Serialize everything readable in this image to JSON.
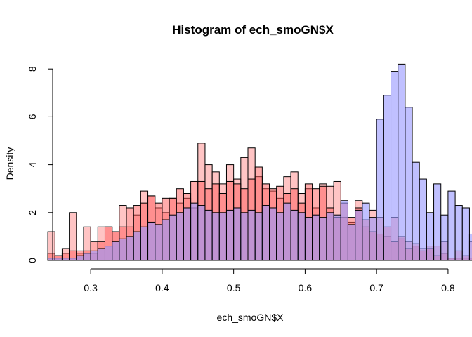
{
  "chart_data": {
    "type": "bar",
    "title": "Histogram of ech_smoGN$X",
    "xlabel": "ech_smoGN$X",
    "ylabel": "Density",
    "xlim": [
      0.235,
      0.805
    ],
    "ylim": [
      0,
      8.5
    ],
    "x_ticks": [
      0.3,
      0.4,
      0.5,
      0.6,
      0.7,
      0.8
    ],
    "x_tick_labels": [
      "0.3",
      "0.4",
      "0.5",
      "0.6",
      "0.7",
      "0.8"
    ],
    "y_ticks": [
      0,
      2,
      4,
      6,
      8
    ],
    "y_tick_labels": [
      "0",
      "2",
      "4",
      "6",
      "8"
    ],
    "bin_start": 0.24,
    "bin_width": 0.01,
    "series": [
      {
        "color": "rgba(255,138,138,0.5)",
        "values": [
          1.2,
          0.2,
          0.5,
          2.0,
          0.3,
          1.4,
          0.3,
          1.4,
          1.4,
          1.2,
          2.3,
          1.4,
          1.9,
          2.9,
          2.7,
          2.2,
          2.0,
          2.6,
          2.4,
          2.6,
          2.2,
          4.9,
          4.0,
          3.7,
          3.2,
          4.0,
          3.4,
          4.3,
          4.7,
          3.5,
          3.0,
          2.9,
          2.6,
          3.5,
          3.7,
          2.8,
          3.0,
          2.2,
          3.2,
          3.1,
          3.3,
          1.8,
          1.6,
          2.5,
          1.4,
          2.1,
          1.8,
          1.0,
          1.8,
          0.9,
          0.8,
          0.7,
          0.5,
          0.6,
          0.6,
          0.8,
          0.1,
          0.4,
          0.1,
          0.8,
          0.6,
          0.1,
          0.2,
          0.3,
          0.6,
          0.5,
          0.8,
          0.6,
          0.0,
          0.8,
          0.8,
          0.8
        ]
      },
      {
        "color": "rgba(255,90,90,0.5)",
        "values": [
          0.3,
          0.2,
          0.3,
          0.4,
          0.4,
          0.4,
          0.8,
          0.8,
          1.4,
          1.2,
          1.4,
          2.2,
          2.3,
          2.4,
          2.7,
          2.4,
          2.6,
          2.6,
          3.0,
          2.8,
          3.3,
          3.3,
          3.0,
          3.2,
          2.8,
          3.3,
          3.2,
          3.0,
          3.4,
          3.9,
          3.2,
          3.0,
          3.1,
          2.8,
          3.0,
          2.4,
          3.2,
          3.0,
          3.1,
          2.2,
          1.8,
          2.4,
          1.8,
          2.2,
          1.7,
          1.2,
          1.1,
          1.4,
          0.8,
          1.0,
          0.5,
          0.6,
          0.4,
          0.5,
          0.2,
          0.3,
          0.1,
          0.1,
          0.2,
          0.1,
          0.0,
          0.0,
          0.0,
          0.1,
          0.0,
          0.0,
          0.0,
          0.0,
          0.0,
          0.0,
          0.0,
          0.0
        ]
      },
      {
        "color": "rgba(150,150,255,0.6)",
        "values": [
          0.1,
          0.1,
          0.1,
          0.1,
          0.2,
          0.3,
          0.4,
          0.5,
          0.6,
          0.8,
          0.9,
          1.0,
          1.2,
          1.4,
          1.6,
          1.5,
          1.7,
          1.9,
          2.0,
          2.2,
          2.4,
          2.3,
          2.1,
          2.0,
          2.0,
          2.1,
          2.2,
          2.0,
          2.1,
          2.0,
          2.3,
          2.2,
          2.0,
          2.4,
          2.1,
          2.0,
          1.8,
          1.9,
          1.8,
          2.0,
          1.9,
          2.5,
          1.5,
          2.1,
          2.4,
          1.8,
          5.9,
          6.9,
          7.9,
          8.2,
          6.4,
          4.1,
          3.4,
          2.0,
          3.2,
          1.9,
          2.9,
          2.3,
          2.2,
          1.1,
          0.8,
          0.7,
          0.6,
          0.4,
          0.6,
          0.4,
          0.3,
          0.2,
          0.1,
          0.1,
          0.0,
          0.0
        ]
      }
    ],
    "grid": false,
    "legend": "none"
  }
}
